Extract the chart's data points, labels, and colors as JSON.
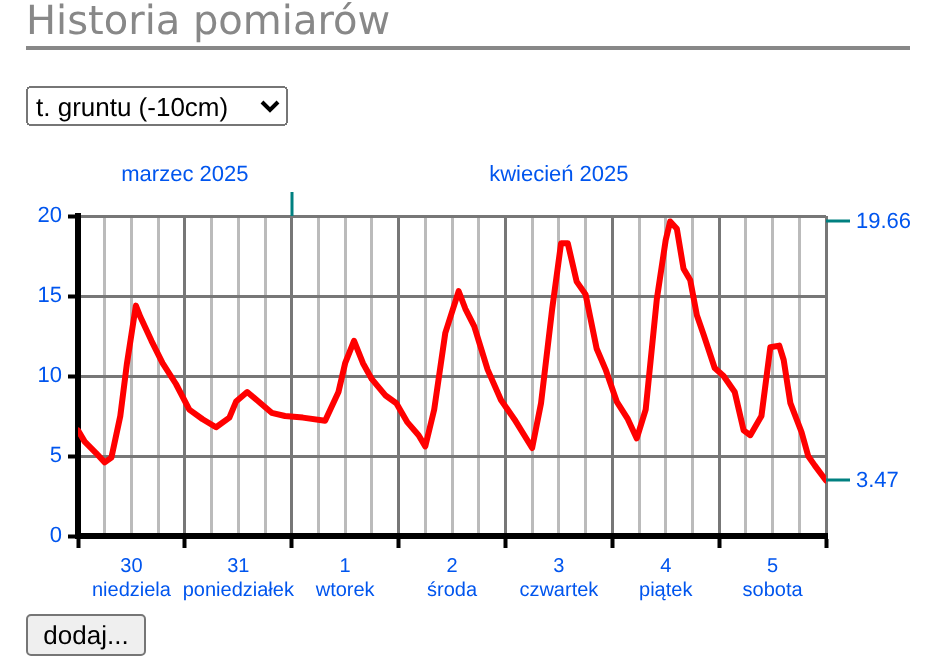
{
  "chart_data": {
    "type": "line",
    "title": "Historia pomiarów",
    "subtitle": "t. gruntu (-10cm)",
    "annotations": [
      "dodaj..."
    ],
    "x": [
      "2025-03-30T00:00",
      "2025-03-30T01:30",
      "2025-03-30T04:00",
      "2025-03-30T06:00",
      "2025-03-30T07:30",
      "2025-03-30T09:30",
      "2025-03-30T11:00",
      "2025-03-30T13:00",
      "2025-03-30T14:00",
      "2025-03-30T16:30",
      "2025-03-30T19:00",
      "2025-03-30T22:00",
      "2025-03-31T01:00",
      "2025-03-31T04:00",
      "2025-03-31T07:00",
      "2025-03-31T10:00",
      "2025-03-31T11:30",
      "2025-03-31T14:00",
      "2025-03-31T17:00",
      "2025-03-31T19:30",
      "2025-03-31T22:30",
      "2025-04-01T02:30",
      "2025-04-01T07:30",
      "2025-04-01T10:30",
      "2025-04-01T12:00",
      "2025-04-01T14:00",
      "2025-04-01T16:00",
      "2025-04-01T18:00",
      "2025-04-01T21:00",
      "2025-04-01T23:30",
      "2025-04-02T02:00",
      "2025-04-02T04:30",
      "2025-04-02T06:00",
      "2025-04-02T08:00",
      "2025-04-02T10:30",
      "2025-04-02T13:30",
      "2025-04-02T15:00",
      "2025-04-02T17:00",
      "2025-04-02T20:00",
      "2025-04-02T23:00",
      "2025-04-03T02:00",
      "2025-04-03T06:00",
      "2025-04-03T08:00",
      "2025-04-03T10:30",
      "2025-04-03T12:30",
      "2025-04-03T14:00",
      "2025-04-03T16:00",
      "2025-04-03T18:00",
      "2025-04-03T20:30",
      "2025-04-03T22:30",
      "2025-04-04T01:00",
      "2025-04-04T03:30",
      "2025-04-04T05:30",
      "2025-04-04T07:30",
      "2025-04-04T10:00",
      "2025-04-04T12:00",
      "2025-04-04T13:00",
      "2025-04-04T14:30",
      "2025-04-04T16:00",
      "2025-04-04T17:30",
      "2025-04-04T19:00",
      "2025-04-04T20:30",
      "2025-04-04T23:00",
      "2025-04-05T01:00",
      "2025-04-05T03:30",
      "2025-04-05T05:30",
      "2025-04-05T07:00",
      "2025-04-05T09:30",
      "2025-04-05T11:30",
      "2025-04-05T13:30",
      "2025-04-05T14:30",
      "2025-04-05T16:00",
      "2025-04-05T18:30",
      "2025-04-05T20:00",
      "2025-04-05T21:30",
      "2025-04-06T00:00"
    ],
    "series": [
      {
        "color": "#ff0000",
        "values": [
          6.6,
          5.9,
          5.2,
          4.6,
          4.9,
          7.5,
          10.8,
          14.4,
          13.7,
          12.2,
          10.8,
          9.5,
          7.9,
          7.3,
          6.8,
          7.4,
          8.4,
          9.0,
          8.3,
          7.7,
          7.5,
          7.4,
          7.2,
          9.0,
          10.8,
          12.2,
          10.8,
          9.8,
          8.8,
          8.3,
          7.1,
          6.3,
          5.6,
          7.9,
          12.7,
          15.3,
          14.2,
          13.1,
          10.4,
          8.5,
          7.3,
          5.5,
          8.3,
          14.2,
          18.3,
          18.3,
          15.9,
          15.1,
          11.7,
          10.4,
          8.4,
          7.3,
          6.1,
          7.9,
          14.8,
          18.5,
          19.66,
          19.2,
          16.7,
          16.0,
          13.8,
          12.6,
          10.5,
          10.0,
          9.0,
          6.6,
          6.3,
          7.5,
          11.8,
          11.9,
          11.0,
          8.3,
          6.5,
          5.0,
          4.4,
          3.47
        ]
      }
    ],
    "xlim": [
      "2025-03-30T00:00",
      "2025-04-06T00:00"
    ],
    "xticks": [
      {
        "value": "2025-03-30T00:00",
        "label": null
      },
      {
        "value": "2025-03-30T06:00",
        "label": null
      },
      {
        "value": "2025-03-30T12:00",
        "label": "30\nniedziela"
      },
      {
        "value": "2025-03-30T18:00",
        "label": null
      },
      {
        "value": "2025-03-31T00:00",
        "label": null
      },
      {
        "value": "2025-03-31T06:00",
        "label": null
      },
      {
        "value": "2025-03-31T12:00",
        "label": "31\nponiedziałek"
      },
      {
        "value": "2025-03-31T18:00",
        "label": null
      },
      {
        "value": "2025-04-01T00:00",
        "label": null
      },
      {
        "value": "2025-04-01T06:00",
        "label": null
      },
      {
        "value": "2025-04-01T12:00",
        "label": "1\nwtorek"
      },
      {
        "value": "2025-04-01T18:00",
        "label": null
      },
      {
        "value": "2025-04-02T00:00",
        "label": null
      },
      {
        "value": "2025-04-02T06:00",
        "label": null
      },
      {
        "value": "2025-04-02T12:00",
        "label": "2\nśroda"
      },
      {
        "value": "2025-04-02T18:00",
        "label": null
      },
      {
        "value": "2025-04-03T00:00",
        "label": null
      },
      {
        "value": "2025-04-03T06:00",
        "label": null
      },
      {
        "value": "2025-04-03T12:00",
        "label": "3\nczwartek"
      },
      {
        "value": "2025-04-03T18:00",
        "label": null
      },
      {
        "value": "2025-04-04T00:00",
        "label": null
      },
      {
        "value": "2025-04-04T06:00",
        "label": null
      },
      {
        "value": "2025-04-04T12:00",
        "label": "4\npiątek"
      },
      {
        "value": "2025-04-04T18:00",
        "label": null
      },
      {
        "value": "2025-04-05T00:00",
        "label": null
      },
      {
        "value": "2025-04-05T06:00",
        "label": null
      },
      {
        "value": "2025-04-05T12:00",
        "label": "5\nsobota"
      },
      {
        "value": "2025-04-05T18:00",
        "label": null
      },
      {
        "value": "2025-04-06T00:00",
        "label": null
      }
    ],
    "x2lim": [
      "2025-03-30T00:00",
      "2025-04-06T00:00"
    ],
    "x2ticks": [
      {
        "value": "2025-03-31T00:00",
        "label": "marzec 2025"
      },
      {
        "value": "2025-04-01T00:00",
        "label": null
      },
      {
        "value": "2025-04-03T12:00",
        "label": "kwiecień 2025"
      }
    ],
    "ylim": [
      0,
      20
    ],
    "yticks": [
      0,
      5,
      10,
      15,
      20
    ],
    "y2lim": [
      0,
      20
    ],
    "y2ticks": [
      3.47,
      19.66
    ],
    "grid": true,
    "legend": false,
    "marker": "none",
    "line_style": "solid"
  }
}
